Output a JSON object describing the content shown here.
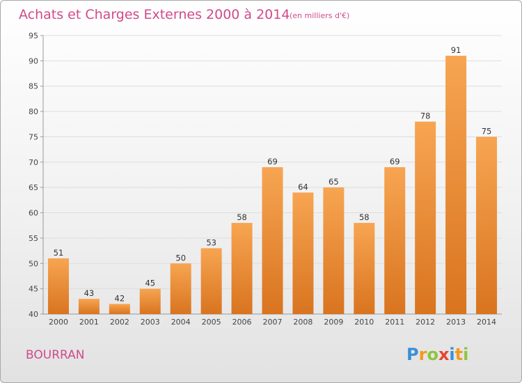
{
  "chart_data": {
    "type": "bar",
    "title": "Achats et Charges Externes 2000 à 2014",
    "subtitle": "(en milliers d'€)",
    "categories": [
      "2000",
      "2001",
      "2002",
      "2003",
      "2004",
      "2005",
      "2006",
      "2007",
      "2008",
      "2009",
      "2010",
      "2011",
      "2012",
      "2013",
      "2014"
    ],
    "values": [
      51,
      43,
      42,
      45,
      50,
      53,
      58,
      69,
      64,
      65,
      58,
      69,
      78,
      91,
      75
    ],
    "ylim": [
      40,
      95
    ],
    "yticks": [
      40,
      45,
      50,
      55,
      60,
      65,
      70,
      75,
      80,
      85,
      90,
      95
    ],
    "grid": true,
    "xlabel": "",
    "ylabel": "",
    "bar_color_top": "#f7a552",
    "bar_color_bottom": "#d9741f"
  },
  "footer": {
    "town": "BOURRAN",
    "logo_letters": [
      "P",
      "r",
      "o",
      "x",
      "i",
      "t",
      "i"
    ],
    "logo_colors": [
      "#3a8fd6",
      "#f39a1c",
      "#8cc63f",
      "#e8452f",
      "#3a8fd6",
      "#f39a1c",
      "#8cc63f"
    ]
  },
  "colors": {
    "title": "#d04a8a",
    "grid": "#dddddd",
    "axis": "#999999"
  }
}
